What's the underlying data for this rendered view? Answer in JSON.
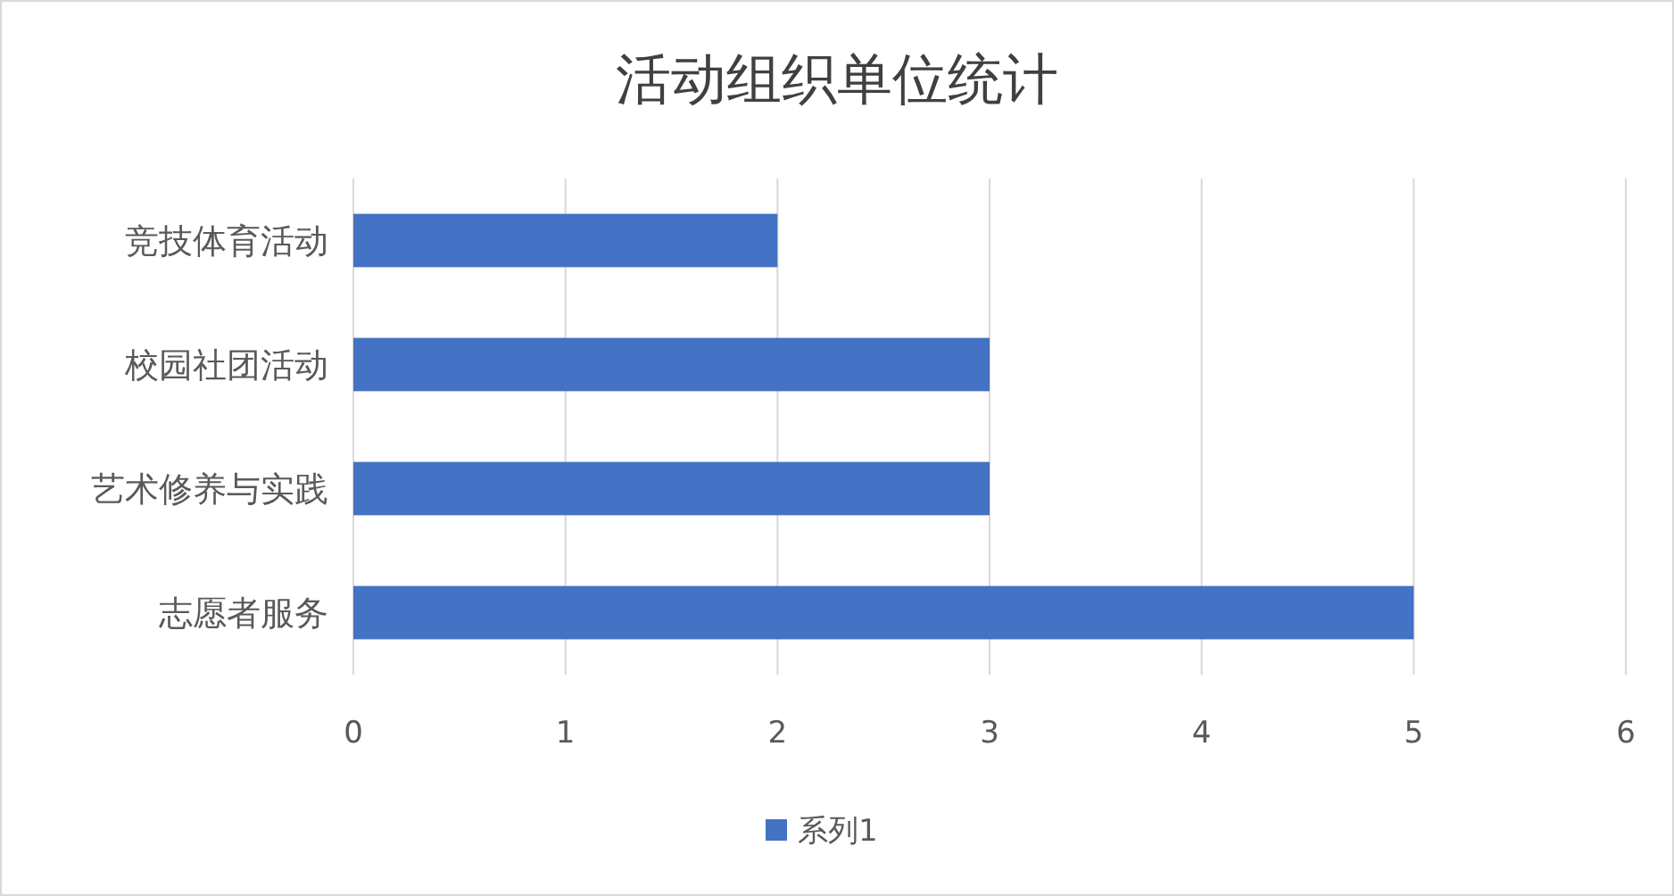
{
  "chart_data": {
    "type": "bar",
    "orientation": "horizontal",
    "title": "活动组织单位统计",
    "categories": [
      "竞技体育活动",
      "校园社团活动",
      "艺术修养与实践",
      "志愿者服务"
    ],
    "series": [
      {
        "name": "系列1",
        "color": "#4472c4",
        "values": [
          2,
          3,
          3,
          5
        ]
      }
    ],
    "xlim": [
      0,
      6
    ],
    "xticks": [
      0,
      1,
      2,
      3,
      4,
      5,
      6
    ],
    "grid": "x",
    "legend": "bottom"
  }
}
